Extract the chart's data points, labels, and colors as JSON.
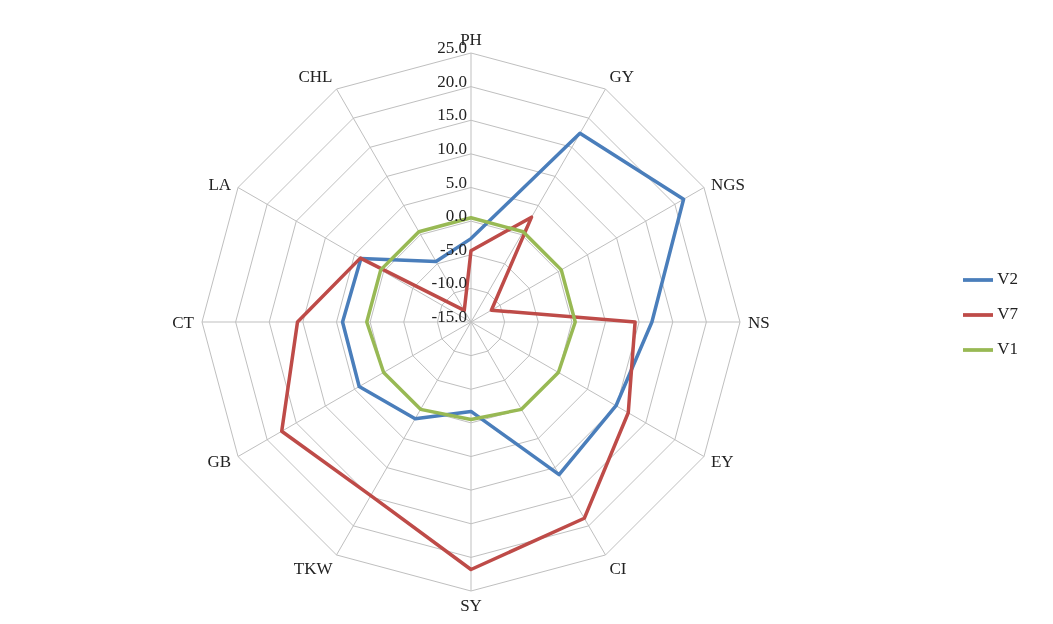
{
  "chart_data": {
    "type": "radar",
    "categories": [
      "PH",
      "GY",
      "NGS",
      "NS",
      "EY",
      "CI",
      "SY",
      "TKW",
      "GB",
      "CT",
      "LA",
      "CHL"
    ],
    "series": [
      {
        "name": "V2",
        "color": "#4a7ebb",
        "values": [
          -2.6,
          17.4,
          21.5,
          11.9,
          9.9,
          11.2,
          -1.7,
          1.6,
          4.2,
          4.1,
          3.9,
          -4.6
        ]
      },
      {
        "name": "V7",
        "color": "#be4b48",
        "values": [
          -4.4,
          3.0,
          -11.5,
          9.4,
          12.0,
          18.7,
          21.8,
          14.8,
          17.5,
          10.8,
          4.0,
          -13.0
        ]
      },
      {
        "name": "V1",
        "color": "#98b954",
        "values": [
          0.5,
          0.5,
          0.5,
          0.5,
          0.0,
          0.0,
          -0.5,
          0.0,
          0.0,
          0.5,
          0.5,
          0.5
        ]
      }
    ],
    "ylim": [
      -15,
      25
    ],
    "yticks": [
      {
        "value": -15,
        "label": "-15.0"
      },
      {
        "value": -10,
        "label": "-10.0"
      },
      {
        "value": -5,
        "label": "-5.0"
      },
      {
        "value": 0,
        "label": "0.0"
      },
      {
        "value": 5,
        "label": "5.0"
      },
      {
        "value": 10,
        "label": "10.0"
      },
      {
        "value": 15,
        "label": "15.0"
      },
      {
        "value": 20,
        "label": "20.0"
      },
      {
        "value": 25,
        "label": "25.0"
      }
    ],
    "grid": true,
    "legend": "right",
    "marker": "none",
    "line_style": "solid"
  }
}
